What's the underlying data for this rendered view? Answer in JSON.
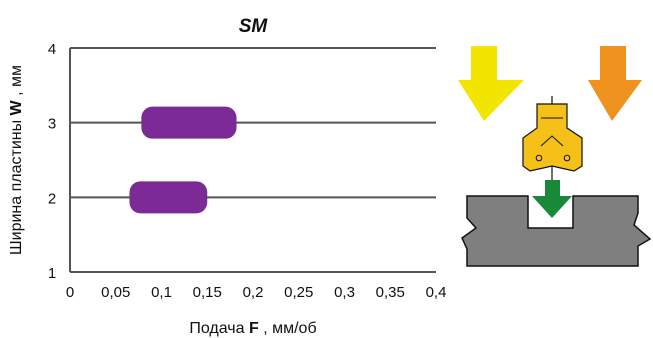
{
  "chart_data": {
    "type": "bar",
    "title": "SM",
    "xlabel": "Подача",
    "xlabel_symbol": "F",
    "xlabel_unit": ", мм/об",
    "ylabel": "Ширина пластины",
    "ylabel_symbol": "W",
    "ylabel_unit": ", мм",
    "xlim": [
      0,
      0.4
    ],
    "ylim": [
      1,
      4
    ],
    "x_ticks": [
      "0",
      "0,05",
      "0,1",
      "0,15",
      "0,2",
      "0,25",
      "0,3",
      "0,35",
      "0,4"
    ],
    "x_tick_values": [
      0,
      0.05,
      0.1,
      0.15,
      0.2,
      0.25,
      0.3,
      0.35,
      0.4
    ],
    "y_ticks": [
      "1",
      "2",
      "3",
      "4"
    ],
    "y_tick_values": [
      1,
      2,
      3,
      4
    ],
    "grid": "horizontal",
    "series": [
      {
        "ranges": [
          {
            "w": 2,
            "f_min": 0.065,
            "f_max": 0.15
          },
          {
            "w": 3,
            "f_min": 0.078,
            "f_max": 0.182
          }
        ],
        "color": "#7b2a96"
      }
    ]
  },
  "diagram": {
    "arrow_yellow_color": "#f2e600",
    "arrow_orange_color": "#f0921e",
    "insert_color": "#f5c018",
    "feed_arrow_color": "#178a3a",
    "workpiece_color": "#7f7f7f"
  }
}
